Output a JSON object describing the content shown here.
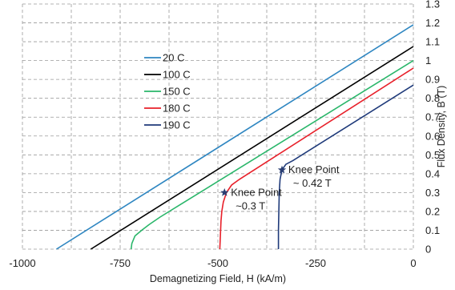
{
  "chart_data": {
    "type": "line",
    "title": "",
    "xlabel": "Demagnetizing Field, H (kA/m)",
    "ylabel": "Flux Density, B (T)",
    "xlim": [
      -1000,
      0
    ],
    "ylim": [
      0,
      1.3
    ],
    "x_ticks": [
      -1000,
      -750,
      -500,
      -250,
      0
    ],
    "x_tick_labels": [
      "-1000",
      "-750",
      "-500",
      "-250",
      "0"
    ],
    "y_ticks": [
      0,
      0.1,
      0.2,
      0.3,
      0.4,
      0.5,
      0.6,
      0.7,
      0.8,
      0.9,
      1,
      1.1,
      1.2,
      1.3
    ],
    "y_tick_labels": [
      "0",
      "0.1",
      "0.2",
      "0.3",
      "0.4",
      "0.5",
      "0.6",
      "0.7",
      "0.8",
      "0.9",
      "1",
      "1.1",
      "1.2",
      "1.3"
    ],
    "grid": true,
    "y_axis_side": "right",
    "legend_position": "upper-left",
    "series": [
      {
        "name": "20 C",
        "color": "#2e86c1",
        "points": [
          [
            -913,
            0
          ],
          [
            0,
            1.19
          ]
        ]
      },
      {
        "name": "100 C",
        "color": "#000000",
        "points": [
          [
            -825,
            0
          ],
          [
            0,
            1.075
          ]
        ]
      },
      {
        "name": "150 C",
        "color": "#2ab66a",
        "points": [
          [
            -722,
            0
          ],
          [
            -720,
            0.03
          ],
          [
            -712,
            0.07
          ],
          [
            -695,
            0.1
          ],
          [
            -676,
            0.13
          ],
          [
            -648,
            0.17
          ],
          [
            0,
            1.0
          ]
        ]
      },
      {
        "name": "180 C",
        "color": "#e8202a",
        "points": [
          [
            -495,
            0
          ],
          [
            -494,
            0.05
          ],
          [
            -493,
            0.1
          ],
          [
            -492,
            0.15
          ],
          [
            -490,
            0.2
          ],
          [
            -486,
            0.25
          ],
          [
            -478,
            0.3
          ],
          [
            -465,
            0.34
          ],
          [
            -445,
            0.37
          ],
          [
            0,
            0.96
          ]
        ]
      },
      {
        "name": "190 C",
        "color": "#1f3a7a",
        "points": [
          [
            -345,
            0
          ],
          [
            -345,
            0.1
          ],
          [
            -344,
            0.2
          ],
          [
            -343,
            0.3
          ],
          [
            -341,
            0.37
          ],
          [
            -336,
            0.42
          ],
          [
            -326,
            0.45
          ],
          [
            -308,
            0.47
          ],
          [
            0,
            0.87
          ]
        ]
      }
    ],
    "markers": [
      {
        "x": -483,
        "y": 0.3,
        "color": "#2b3f73"
      },
      {
        "x": -336,
        "y": 0.42,
        "color": "#2b3f73"
      }
    ],
    "annotations": [
      {
        "lines": [
          "Knee Point",
          "~0.3 T"
        ],
        "x": -475,
        "y": 0.3
      },
      {
        "lines": [
          "Knee Point",
          "~ 0.42 T"
        ],
        "x": -328,
        "y": 0.42
      }
    ]
  }
}
